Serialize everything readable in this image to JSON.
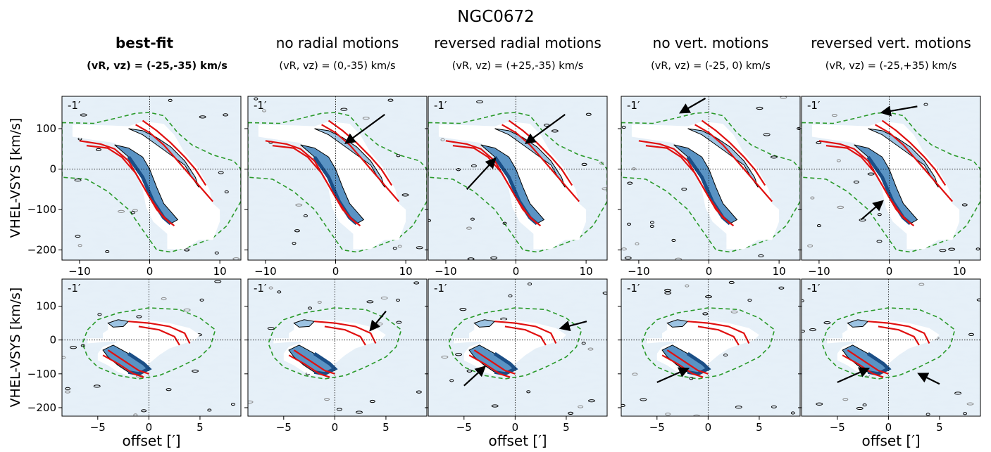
{
  "figure": {
    "title": "NGC0672",
    "colors": {
      "background_noise": "#c9dcec",
      "background_light": "#e6f0f8",
      "emission_dark": "#1a4e86",
      "emission_mid": "#5a93c4",
      "emission_light": "#9cc3e2",
      "model_contour": "#e01010",
      "outer_mask": "#2a9a2a",
      "contour_black": "#000000",
      "arrow": "#000000"
    }
  },
  "chart_data": [
    {
      "type": "position-velocity panel grid",
      "row_descriptions": [
        "major-axis PV slices",
        "minor-axis PV slices"
      ],
      "columns": [
        {
          "heading": "best-fit",
          "subheading": "(vR, vz) = (-25,-35) km/s",
          "bold": true
        },
        {
          "heading": "no radial motions",
          "subheading": "(vR, vz) = (0,-35) km/s",
          "bold": false
        },
        {
          "heading": "reversed radial motions",
          "subheading": "(vR, vz) = (+25,-35) km/s",
          "bold": false
        },
        {
          "heading": "no vert. motions",
          "subheading": "(vR, vz) = (-25, 0) km/s",
          "bold": false
        },
        {
          "heading": "reversed vert. motions",
          "subheading": "(vR, vz) = (-25,+35) km/s",
          "bold": false
        }
      ],
      "panel_label": "-1′",
      "ylabel": "VHEL-VSYS [km/s]",
      "xlabel": "offset [′]",
      "rows": [
        {
          "xlim": [
            -12.5,
            13
          ],
          "xticks": [
            -10,
            0,
            10
          ],
          "ylim": [
            -225,
            180
          ],
          "yticks": [
            100,
            0,
            -100,
            -200
          ]
        },
        {
          "xlim": [
            -8.5,
            9
          ],
          "xticks": [
            -5,
            0,
            5
          ],
          "ylim": [
            -225,
            180
          ],
          "yticks": [
            100,
            0,
            -100,
            -200
          ]
        }
      ],
      "tick_labels": {
        "top_x": [
          "−10",
          "0",
          "10"
        ],
        "bottom_x": [
          "−5",
          "0",
          "5"
        ],
        "y": [
          "100",
          "0",
          "−100",
          "−200"
        ]
      },
      "arrows": [
        {
          "row": 0,
          "col": 1,
          "from": [
            7,
            135
          ],
          "to": [
            1.5,
            65
          ]
        },
        {
          "row": 0,
          "col": 2,
          "from": [
            7,
            135
          ],
          "to": [
            1.5,
            65
          ]
        },
        {
          "row": 0,
          "col": 2,
          "from": [
            -7,
            -50
          ],
          "to": [
            -3,
            25
          ]
        },
        {
          "row": 0,
          "col": 3,
          "from": [
            -0.5,
            175
          ],
          "to": [
            -4,
            140
          ]
        },
        {
          "row": 0,
          "col": 4,
          "from": [
            4,
            155
          ],
          "to": [
            -1,
            140
          ]
        },
        {
          "row": 0,
          "col": 4,
          "from": [
            -4,
            -125
          ],
          "to": [
            -1,
            -80
          ]
        },
        {
          "row": 1,
          "col": 1,
          "from": [
            5,
            85
          ],
          "to": [
            3.5,
            30
          ]
        },
        {
          "row": 1,
          "col": 2,
          "from": [
            7,
            55
          ],
          "to": [
            4.5,
            35
          ]
        },
        {
          "row": 1,
          "col": 2,
          "from": [
            -5,
            -135
          ],
          "to": [
            -3,
            -80
          ]
        },
        {
          "row": 1,
          "col": 3,
          "from": [
            -5,
            -125
          ],
          "to": [
            -2,
            -85
          ]
        },
        {
          "row": 1,
          "col": 4,
          "from": [
            -5,
            -125
          ],
          "to": [
            -2,
            -85
          ]
        },
        {
          "row": 1,
          "col": 4,
          "from": [
            5,
            -130
          ],
          "to": [
            3,
            -100
          ]
        }
      ]
    }
  ]
}
